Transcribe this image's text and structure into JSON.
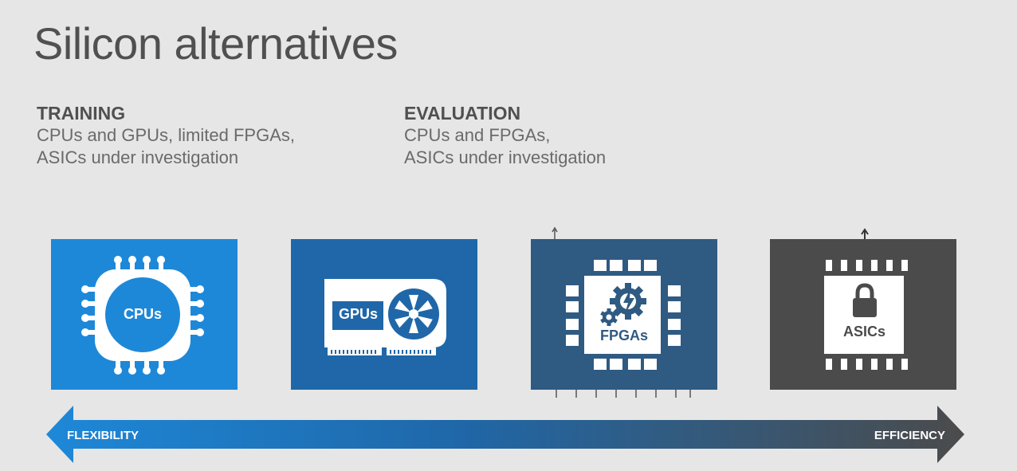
{
  "title": "Silicon alternatives",
  "training": {
    "heading": "TRAINING",
    "line1": "CPUs and GPUs, limited FPGAs,",
    "line2": "ASICs under investigation"
  },
  "evaluation": {
    "heading": "EVALUATION",
    "line1": "CPUs and FPGAs,",
    "line2": "ASICs under investigation"
  },
  "tiles": [
    {
      "label": "CPUs",
      "color": "#1e88d8",
      "icon": "chip-icon"
    },
    {
      "label": "GPUs",
      "color": "#1f67a8",
      "icon": "graphics-card-icon"
    },
    {
      "label": "FPGAs",
      "color": "#2f5a82",
      "icon": "gear-lightning-chip-icon"
    },
    {
      "label": "ASICs",
      "color": "#4b4b4b",
      "icon": "lock-chip-icon"
    }
  ],
  "arrow": {
    "left_label": "FLEXIBILITY",
    "right_label": "EFFICIENCY",
    "color_start": "#1e88d8",
    "color_end": "#4b4b4b"
  }
}
